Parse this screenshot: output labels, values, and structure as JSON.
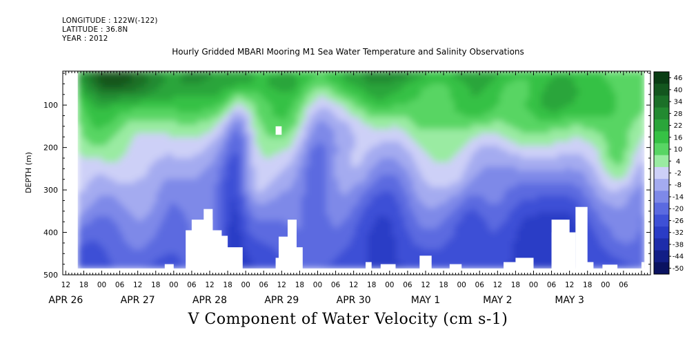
{
  "header": {
    "longitude": "LONGITUDE : 122W(-122)",
    "latitude": "LATITUDE : 36.8N",
    "year": "YEAR : 2012"
  },
  "chart_data": {
    "type": "heatmap",
    "title": "Hourly Gridded MBARI Mooring M1 Sea Water Temperature and Salinity Observations",
    "xlabel": "V Component of Water Velocity (cm s-1)",
    "ylabel": "DEPTH (m)",
    "y_axis": {
      "ticks": [
        100,
        200,
        300,
        400,
        500
      ],
      "range": [
        20,
        500
      ],
      "inverted": true
    },
    "x_axis": {
      "hour_labels": [
        "12",
        "18",
        "00",
        "06",
        "12",
        "18",
        "00",
        "06",
        "12",
        "18",
        "00",
        "06",
        "12",
        "18",
        "00",
        "06",
        "12",
        "18",
        "00",
        "06",
        "12",
        "18",
        "00",
        "06",
        "12",
        "18",
        "00",
        "06",
        "12",
        "18",
        "00",
        "06"
      ],
      "date_labels": [
        "APR 26",
        "APR 27",
        "APR 28",
        "APR 29",
        "APR 30",
        "MAY  1",
        "MAY  2",
        "MAY  3"
      ]
    },
    "colorbar": {
      "labels": [
        "46",
        "40",
        "34",
        "28",
        "22",
        "16",
        "10",
        "4",
        "-2",
        "-8",
        "-14",
        "-20",
        "-26",
        "-32",
        "-38",
        "-44",
        "-50"
      ],
      "colors": [
        "#0a3d14",
        "#13561e",
        "#1b7028",
        "#238a31",
        "#2aa53a",
        "#36c145",
        "#58d564",
        "#9aeba2",
        "#cdd0f7",
        "#a4abf0",
        "#7e89e8",
        "#5b6ae0",
        "#3e50d6",
        "#2a3cc6",
        "#1d2caa",
        "#121e86",
        "#0a1260"
      ]
    },
    "data_region": {
      "time_range_hours": [
        -8,
        181
      ],
      "depth_range": [
        20,
        485
      ]
    },
    "features": {
      "surface_layer": "predominantly positive (northward) velocity, green, 0 to 40 cm/s",
      "deep_layer": "predominantly negative (southward) velocity, blue, -5 to -30 cm/s"
    }
  }
}
